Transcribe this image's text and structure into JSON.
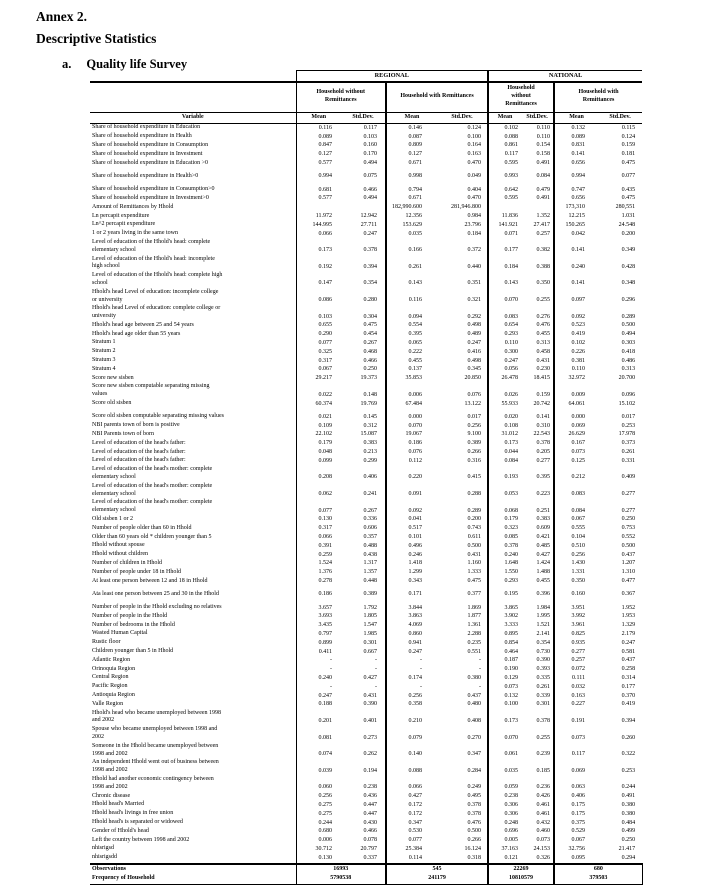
{
  "page": {
    "title_line1": "Annex 2.",
    "title_line2": "Descriptive Statistics",
    "section_label": "a.",
    "section_title": "Quality life Survey"
  },
  "table": {
    "scope_headers": [
      "REGIONAL",
      "NATIONAL"
    ],
    "group_headers": [
      "Household without\nRemittances",
      "Household with Remittances",
      "Household\nwithout\nRemittances",
      "Household with\nRemittances"
    ],
    "variable_header": "Variable",
    "stat_headers": [
      "Mean",
      "Std.Dev."
    ],
    "rows": [
      {
        "label": "Share of household expenditure in Education",
        "values": [
          "0.116",
          "0.117",
          "0.146",
          "0.124",
          "0.102",
          "0.110",
          "0.132",
          "0.115"
        ]
      },
      {
        "label": "Share of household expenditure in Health",
        "values": [
          "0.089",
          "0.103",
          "0.087",
          "0.100",
          "0.088",
          "0.110",
          "0.089",
          "0.124"
        ]
      },
      {
        "label": "Share of household expenditure in Consumption",
        "values": [
          "0.847",
          "0.160",
          "0.809",
          "0.164",
          "0.861",
          "0.154",
          "0.831",
          "0.159"
        ]
      },
      {
        "label": "Share of household expenditure in Investment",
        "values": [
          "0.127",
          "0.170",
          "0.127",
          "0.163",
          "0.117",
          "0.158",
          "0.141",
          "0.181"
        ]
      },
      {
        "label": "Share of household expenditure in Education >0",
        "values": [
          "0.577",
          "0.494",
          "0.671",
          "0.470",
          "0.595",
          "0.491",
          "0.656",
          "0.475"
        ]
      },
      {
        "label": "Share of household expenditure in Health>0",
        "gap": true,
        "values": [
          "0.994",
          "0.075",
          "0.998",
          "0.049",
          "0.993",
          "0.084",
          "0.994",
          "0.077"
        ]
      },
      {
        "label": "Share of household expenditure in Consumption>0",
        "gap": true,
        "values": [
          "0.681",
          "0.466",
          "0.794",
          "0.404",
          "0.642",
          "0.479",
          "0.747",
          "0.435"
        ]
      },
      {
        "label": "Share of household expenditure in Investment>0",
        "values": [
          "0.577",
          "0.494",
          "0.671",
          "0.470",
          "0.595",
          "0.491",
          "0.656",
          "0.475"
        ]
      },
      {
        "label": "Amount of Remittances by Hhold",
        "values": [
          "",
          "",
          "182,990.600",
          "281,946.800",
          "",
          "",
          "173,310",
          "280,551"
        ]
      },
      {
        "label": "Ln percapit expenditure",
        "values": [
          "11.972",
          "12.942",
          "12.356",
          "0.984",
          "11.836",
          "1.352",
          "12.215",
          "1.031"
        ]
      },
      {
        "label": "Ln^2 percapit expenditure",
        "values": [
          "144.995",
          "27.711",
          "153.629",
          "23.796",
          "141.921",
          "27.417",
          "150.265",
          "24.548"
        ]
      },
      {
        "label": "1 or 2 years living in the same town",
        "values": [
          "0.066",
          "0.247",
          "0.035",
          "0.184",
          "0.071",
          "0.257",
          "0.042",
          "0.200"
        ]
      },
      {
        "label": "Level of education of the Hhold's head: complete\nelementary school",
        "values": [
          "0.173",
          "0.378",
          "0.166",
          "0.372",
          "0.177",
          "0.382",
          "0.141",
          "0.349"
        ]
      },
      {
        "label": "Level of education of the Hhold's head: incomplete\nhigh school",
        "values": [
          "0.192",
          "0.394",
          "0.261",
          "0.440",
          "0.184",
          "0.388",
          "0.240",
          "0.428"
        ]
      },
      {
        "label": "Level of education of the Hhold's head: complete high\nschool",
        "values": [
          "0.147",
          "0.354",
          "0.143",
          "0.351",
          "0.143",
          "0.350",
          "0.141",
          "0.348"
        ]
      },
      {
        "label": "Hhold's head Level of education: incomplete college\nor university",
        "values": [
          "0.086",
          "0.280",
          "0.116",
          "0.321",
          "0.070",
          "0.255",
          "0.097",
          "0.296"
        ]
      },
      {
        "label": "Hhold's head Level of education: complete college or\nuniversity",
        "values": [
          "0.103",
          "0.304",
          "0.094",
          "0.292",
          "0.083",
          "0.276",
          "0.092",
          "0.289"
        ]
      },
      {
        "label": "Hhold's head age between 25 and 54 years",
        "values": [
          "0.655",
          "0.475",
          "0.554",
          "0.498",
          "0.654",
          "0.476",
          "0.523",
          "0.500"
        ]
      },
      {
        "label": "Hhold's head age older than 55 years",
        "values": [
          "0.290",
          "0.454",
          "0.395",
          "0.489",
          "0.293",
          "0.455",
          "0.419",
          "0.494"
        ]
      },
      {
        "label": "Stratum 1",
        "values": [
          "0.077",
          "0.267",
          "0.065",
          "0.247",
          "0.110",
          "0.313",
          "0.102",
          "0.303"
        ]
      },
      {
        "label": "Stratum 2",
        "values": [
          "0.325",
          "0.468",
          "0.222",
          "0.416",
          "0.300",
          "0.458",
          "0.226",
          "0.418"
        ]
      },
      {
        "label": "Stratum 3",
        "values": [
          "0.317",
          "0.466",
          "0.455",
          "0.498",
          "0.247",
          "0.431",
          "0.381",
          "0.486"
        ]
      },
      {
        "label": "Stratum 4",
        "values": [
          "0.067",
          "0.250",
          "0.137",
          "0.345",
          "0.056",
          "0.230",
          "0.110",
          "0.313"
        ]
      },
      {
        "label": "Score new sisben",
        "values": [
          "29.217",
          "19.373",
          "35.853",
          "20.850",
          "26.478",
          "18.415",
          "32.972",
          "20.700"
        ]
      },
      {
        "label": "Score new sisben computable separating missing\nvalues",
        "values": [
          "0.022",
          "0.148",
          "0.006",
          "0.076",
          "0.026",
          "0.159",
          "0.009",
          "0.096"
        ]
      },
      {
        "label": "Score old sisben",
        "values": [
          "60.374",
          "19.769",
          "67.484",
          "13.122",
          "55.933",
          "20.742",
          "64.061",
          "15.102"
        ]
      },
      {
        "label": "Score old sisben computable separating missing values",
        "gap": true,
        "values": [
          "0.021",
          "0.145",
          "0.000",
          "0.017",
          "0.020",
          "0.141",
          "0.000",
          "0.017"
        ]
      },
      {
        "label": "NBI parents town of born is positive",
        "values": [
          "0.109",
          "0.312",
          "0.070",
          "0.256",
          "0.108",
          "0.310",
          "0.069",
          "0.253"
        ]
      },
      {
        "label": "NBI Parents town of born",
        "values": [
          "22.102",
          "15.087",
          "19.067",
          "9.100",
          "31.012",
          "22.543",
          "26.629",
          "17.978"
        ]
      },
      {
        "label": "Level of education of the head's father:",
        "values": [
          "0.179",
          "0.383",
          "0.186",
          "0.389",
          "0.173",
          "0.378",
          "0.167",
          "0.373"
        ]
      },
      {
        "label": "Level of education of the head's father:",
        "values": [
          "0.048",
          "0.213",
          "0.076",
          "0.266",
          "0.044",
          "0.205",
          "0.073",
          "0.261"
        ]
      },
      {
        "label": "Level of education of the head's father:",
        "values": [
          "0.099",
          "0.299",
          "0.112",
          "0.316",
          "0.084",
          "0.277",
          "0.125",
          "0.331"
        ]
      },
      {
        "label": "Level of education of the head's mother: complete\nelementary school",
        "values": [
          "0.208",
          "0.406",
          "0.220",
          "0.415",
          "0.193",
          "0.395",
          "0.212",
          "0.409"
        ]
      },
      {
        "label": "Level of education of the head's mother: complete\nelementary school",
        "values": [
          "0.062",
          "0.241",
          "0.091",
          "0.288",
          "0.053",
          "0.223",
          "0.083",
          "0.277"
        ]
      },
      {
        "label": "Level of education of the head's mother: complete\nelementary school",
        "values": [
          "0.077",
          "0.267",
          "0.092",
          "0.289",
          "0.068",
          "0.251",
          "0.084",
          "0.277"
        ]
      },
      {
        "label": "Old sisben 1 or 2",
        "values": [
          "0.130",
          "0.336",
          "0.041",
          "0.200",
          "0.179",
          "0.383",
          "0.067",
          "0.250"
        ]
      },
      {
        "label": "Number of people older than 60 in Hhold",
        "values": [
          "0.317",
          "0.606",
          "0.517",
          "0.743",
          "0.323",
          "0.609",
          "0.555",
          "0.753"
        ]
      },
      {
        "label": "Older than 60 years old * children younger than 5",
        "values": [
          "0.066",
          "0.357",
          "0.101",
          "0.611",
          "0.085",
          "0.421",
          "0.104",
          "0.552"
        ]
      },
      {
        "label": "Hhold without spouse",
        "values": [
          "0.391",
          "0.488",
          "0.496",
          "0.500",
          "0.378",
          "0.485",
          "0.510",
          "0.500"
        ]
      },
      {
        "label": "Hhold without children",
        "values": [
          "0.259",
          "0.438",
          "0.246",
          "0.431",
          "0.240",
          "0.427",
          "0.256",
          "0.437"
        ]
      },
      {
        "label": "Number of children in Hhold",
        "values": [
          "1.524",
          "1.317",
          "1.418",
          "1.160",
          "1.648",
          "1.424",
          "1.430",
          "1.207"
        ]
      },
      {
        "label": "Number of people under 18 in Hhold",
        "values": [
          "1.376",
          "1.357",
          "1.299",
          "1.333",
          "1.550",
          "1.488",
          "1.331",
          "1.310"
        ]
      },
      {
        "label": "At least one person between 12 and 18 in Hhold",
        "values": [
          "0.278",
          "0.448",
          "0.343",
          "0.475",
          "0.293",
          "0.455",
          "0.350",
          "0.477"
        ]
      },
      {
        "label": "Ata least one person between 25 and 30 in the Hhold",
        "gap": true,
        "values": [
          "0.186",
          "0.389",
          "0.171",
          "0.377",
          "0.195",
          "0.396",
          "0.160",
          "0.367"
        ]
      },
      {
        "label": "Number of people in the Hhold excluding no relatives",
        "gap": true,
        "values": [
          "3.657",
          "1.792",
          "3.844",
          "1.869",
          "3.865",
          "1.984",
          "3.951",
          "1.952"
        ]
      },
      {
        "label": "Number of people in the Hhold",
        "values": [
          "3.693",
          "1.805",
          "3.863",
          "1.877",
          "3.902",
          "1.995",
          "3.992",
          "1.953"
        ]
      },
      {
        "label": "Number of bedrooms in the Hhold",
        "values": [
          "3.435",
          "1.547",
          "4.069",
          "1.361",
          "3.333",
          "1.521",
          "3.961",
          "1.329"
        ]
      },
      {
        "label": "Wasted Human Capital",
        "values": [
          "0.797",
          "1.985",
          "0.860",
          "2.288",
          "0.895",
          "2.141",
          "0.825",
          "2.179"
        ]
      },
      {
        "label": "Rustic floor",
        "values": [
          "0.899",
          "0.301",
          "0.941",
          "0.235",
          "0.854",
          "0.354",
          "0.935",
          "0.247"
        ]
      },
      {
        "label": "Children younger than 5  in Hhold",
        "values": [
          "0.411",
          "0.667",
          "0.247",
          "0.551",
          "0.464",
          "0.730",
          "0.277",
          "0.581"
        ]
      },
      {
        "label": "Atlantic Region",
        "values": [
          "-",
          "-",
          "-",
          "-",
          "0.187",
          "0.390",
          "0.257",
          "0.437"
        ]
      },
      {
        "label": "Orinoquia Region",
        "values": [
          "-",
          "-",
          "-",
          "-",
          "0.190",
          "0.393",
          "0.072",
          "0.258"
        ]
      },
      {
        "label": "Central Region",
        "values": [
          "0.240",
          "0.427",
          "0.174",
          "0.380",
          "0.129",
          "0.335",
          "0.111",
          "0.314"
        ]
      },
      {
        "label": "Pacific Region",
        "values": [
          "-",
          "-",
          "-",
          "-",
          "0.073",
          "0.261",
          "0.032",
          "0.177"
        ]
      },
      {
        "label": "Antioquia Region",
        "values": [
          "0.247",
          "0.431",
          "0.256",
          "0.437",
          "0.132",
          "0.339",
          "0.163",
          "0.370"
        ]
      },
      {
        "label": "Valle Region",
        "values": [
          "0.188",
          "0.390",
          "0.358",
          "0.480",
          "0.100",
          "0.301",
          "0.227",
          "0.419"
        ]
      },
      {
        "label": "Hhold's head who became unemployed between 1998\nand 2002",
        "values": [
          "0.201",
          "0.401",
          "0.210",
          "0.408",
          "0.173",
          "0.378",
          "0.191",
          "0.394"
        ]
      },
      {
        "label": "Spouse who became unemployed between 1998 and\n2002",
        "values": [
          "0.081",
          "0.273",
          "0.079",
          "0.270",
          "0.070",
          "0.255",
          "0.073",
          "0.260"
        ]
      },
      {
        "label": "Someone in the Hhold became unemployed between\n1998 and 2002",
        "values": [
          "0.074",
          "0.262",
          "0.140",
          "0.347",
          "0.061",
          "0.239",
          "0.117",
          "0.322"
        ]
      },
      {
        "label": "An independent Hhold went out of business between\n1998 and 2002",
        "values": [
          "0.039",
          "0.194",
          "0.088",
          "0.284",
          "0.035",
          "0.185",
          "0.069",
          "0.253"
        ]
      },
      {
        "label": "Hhold had another economic contingency between\n1998 and 2002",
        "values": [
          "0.060",
          "0.238",
          "0.066",
          "0.249",
          "0.059",
          "0.236",
          "0.063",
          "0.244"
        ]
      },
      {
        "label": "Chronic disease",
        "values": [
          "0.256",
          "0.436",
          "0.427",
          "0.495",
          "0.238",
          "0.426",
          "0.406",
          "0.491"
        ]
      },
      {
        "label": "Hhold head's Married",
        "values": [
          "0.275",
          "0.447",
          "0.172",
          "0.378",
          "0.306",
          "0.461",
          "0.175",
          "0.380"
        ]
      },
      {
        "label": "Hhold head's livings in free union",
        "values": [
          "0.275",
          "0.447",
          "0.172",
          "0.378",
          "0.306",
          "0.461",
          "0.175",
          "0.380"
        ]
      },
      {
        "label": "Hhold head's is separated or widowed",
        "values": [
          "0.244",
          "0.430",
          "0.347",
          "0.476",
          "0.248",
          "0.432",
          "0.375",
          "0.484"
        ]
      },
      {
        "label": "Gender of Hhold's head",
        "values": [
          "0.680",
          "0.466",
          "0.530",
          "0.500",
          "0.696",
          "0.460",
          "0.529",
          "0.499"
        ]
      },
      {
        "label": "Left the country between 1998 and 2002",
        "values": [
          "0.006",
          "0.078",
          "0.077",
          "0.266",
          "0.005",
          "0.073",
          "0.067",
          "0.250"
        ]
      },
      {
        "label": "nhisrigsd",
        "values": [
          "30.712",
          "20.797",
          "25.384",
          "16.124",
          "37.163",
          "24.153",
          "32.756",
          "21.417"
        ]
      },
      {
        "label": "nhisrigsdd",
        "values": [
          "0.130",
          "0.337",
          "0.114",
          "0.318",
          "0.121",
          "0.326",
          "0.095",
          "0.294"
        ]
      }
    ],
    "footer": [
      {
        "label": "Observations",
        "values": [
          "16993",
          "545",
          "22269",
          "680"
        ]
      },
      {
        "label": "Frequency of Household",
        "values": [
          "5790538",
          "241179",
          "10810579",
          "379503"
        ]
      }
    ]
  }
}
